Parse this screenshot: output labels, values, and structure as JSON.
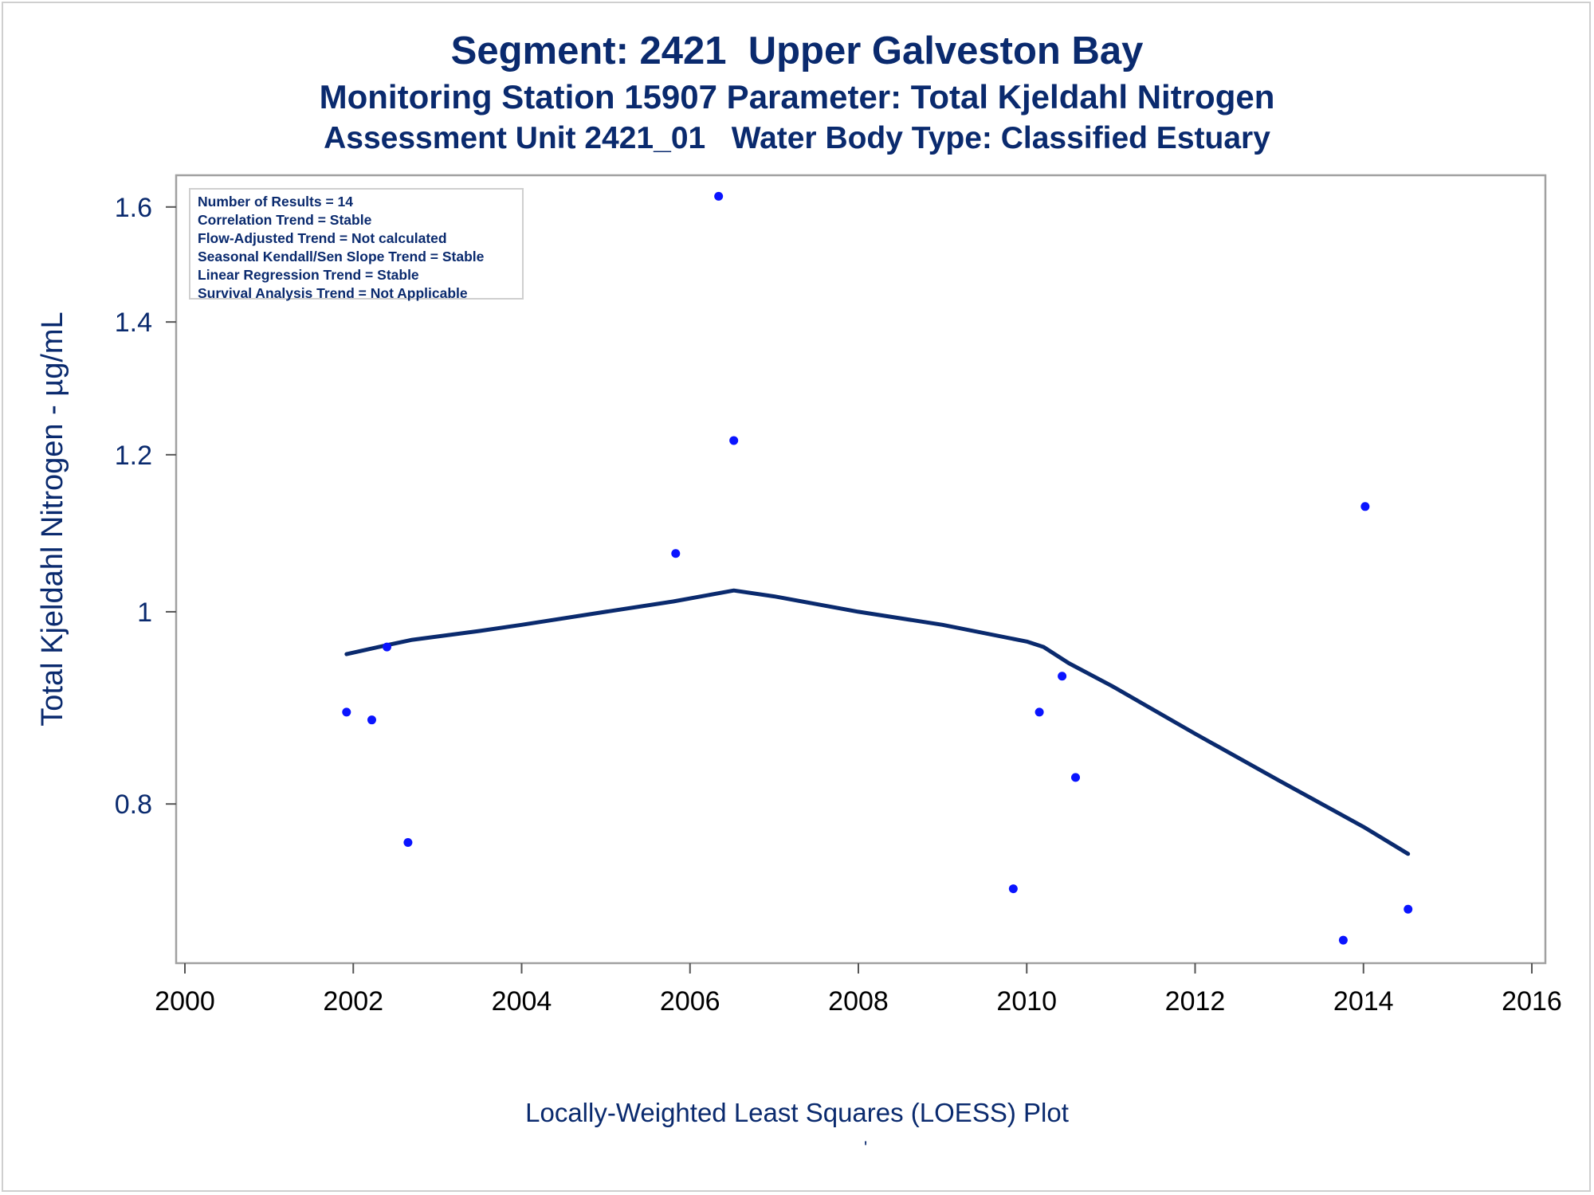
{
  "titles": {
    "line1": "Segment: 2421  Upper Galveston Bay",
    "line2": "Monitoring Station 15907 Parameter: Total Kjeldahl Nitrogen",
    "line3": "Assessment Unit 2421_01   Water Body Type: Classified Estuary"
  },
  "stats": [
    "Number of Results = 14",
    "Correlation Trend = Stable",
    "Flow-Adjusted Trend = Not calculated",
    "Seasonal Kendall/Sen Slope Trend = Stable",
    "Linear Regression Trend = Stable",
    "Survival Analysis Trend = Not Applicable"
  ],
  "footnote": "Locally-Weighted Least Squares (LOESS) Plot",
  "footnote_mark": "'",
  "colors": {
    "text": "#0a2a6e",
    "points": "#0a14ff",
    "loess": "#0a2a6e",
    "frame": "#a0a0a0"
  },
  "chart_data": {
    "type": "scatter",
    "xlabel": "",
    "ylabel": "Total Kjeldahl Nitrogen -  µg/mL",
    "yscale": "log",
    "xlim": [
      2000,
      2016
    ],
    "ylim": [
      0.665,
      1.66
    ],
    "xticks": [
      2000,
      2002,
      2004,
      2006,
      2008,
      2010,
      2012,
      2014,
      2016
    ],
    "yticks": [
      0.8,
      1,
      1.2,
      1.4,
      1.6
    ],
    "ytick_labels": [
      "0.8",
      "1",
      "1.2",
      "1.4",
      "1.6"
    ],
    "points": [
      {
        "x": 2001.92,
        "y": 0.89
      },
      {
        "x": 2002.22,
        "y": 0.882
      },
      {
        "x": 2002.4,
        "y": 0.96
      },
      {
        "x": 2002.65,
        "y": 0.765
      },
      {
        "x": 2005.83,
        "y": 1.07
      },
      {
        "x": 2006.34,
        "y": 1.62
      },
      {
        "x": 2006.52,
        "y": 1.22
      },
      {
        "x": 2009.84,
        "y": 0.725
      },
      {
        "x": 2010.15,
        "y": 0.89
      },
      {
        "x": 2010.42,
        "y": 0.928
      },
      {
        "x": 2010.58,
        "y": 0.825
      },
      {
        "x": 2013.76,
        "y": 0.683
      },
      {
        "x": 2014.02,
        "y": 1.13
      },
      {
        "x": 2014.53,
        "y": 0.708
      }
    ],
    "loess": {
      "x": [
        2001.92,
        2002.4,
        2002.7,
        2003.5,
        2004.0,
        2005.0,
        2005.8,
        2006.52,
        2007.0,
        2008.0,
        2009.0,
        2010.0,
        2010.2,
        2010.5,
        2011.0,
        2012.0,
        2013.0,
        2014.0,
        2014.53
      ],
      "y": [
        0.952,
        0.962,
        0.968,
        0.978,
        0.985,
        1.0,
        1.012,
        1.025,
        1.018,
        1.0,
        0.985,
        0.966,
        0.96,
        0.942,
        0.918,
        0.868,
        0.822,
        0.779,
        0.755
      ]
    }
  }
}
